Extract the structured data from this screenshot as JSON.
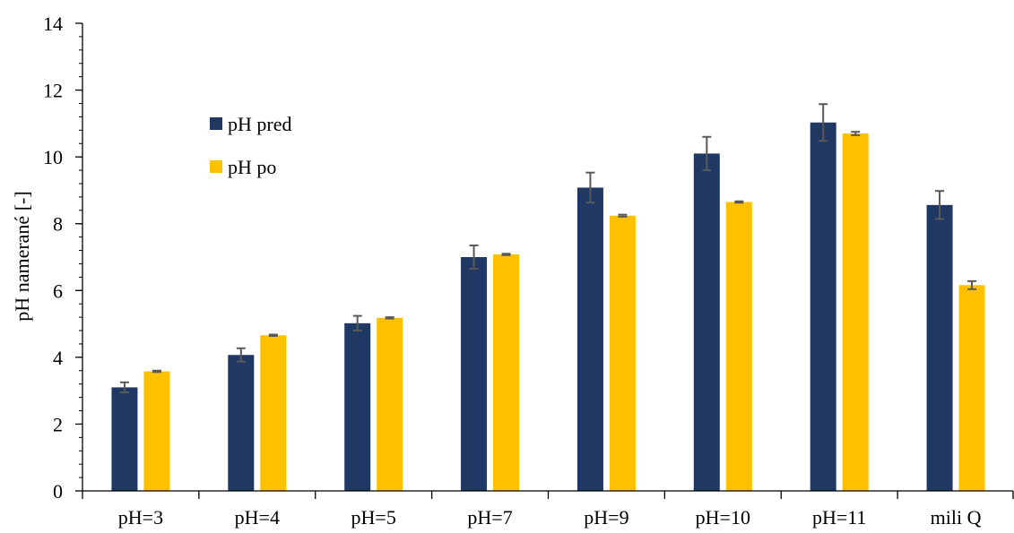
{
  "chart_data": {
    "type": "bar",
    "title": "",
    "xlabel": "",
    "ylabel": "pH namerané [-]",
    "ylim": [
      0,
      14
    ],
    "y_ticks": [
      0,
      2,
      4,
      6,
      8,
      10,
      12,
      14
    ],
    "y_minor_step": 0.4,
    "grid": false,
    "legend_position": "upper-left",
    "categories": [
      "pH=3",
      "pH=4",
      "pH=5",
      "pH=7",
      "pH=9",
      "pH=10",
      "pH=11",
      "mili Q"
    ],
    "series": [
      {
        "name": "pH pred",
        "color": "#203864",
        "values": [
          3.1,
          4.07,
          5.02,
          7.0,
          9.08,
          10.1,
          11.03,
          8.56
        ],
        "errors": [
          0.15,
          0.2,
          0.22,
          0.35,
          0.45,
          0.5,
          0.55,
          0.42
        ]
      },
      {
        "name": "pH po",
        "color": "#FFC000",
        "values": [
          3.58,
          4.66,
          5.18,
          7.08,
          8.24,
          8.65,
          10.7,
          6.16
        ],
        "errors": [
          0.02,
          0.02,
          0.02,
          0.02,
          0.03,
          0.02,
          0.05,
          0.12
        ]
      }
    ],
    "error_bar_color": "#595959",
    "axis_color": "#000000"
  }
}
